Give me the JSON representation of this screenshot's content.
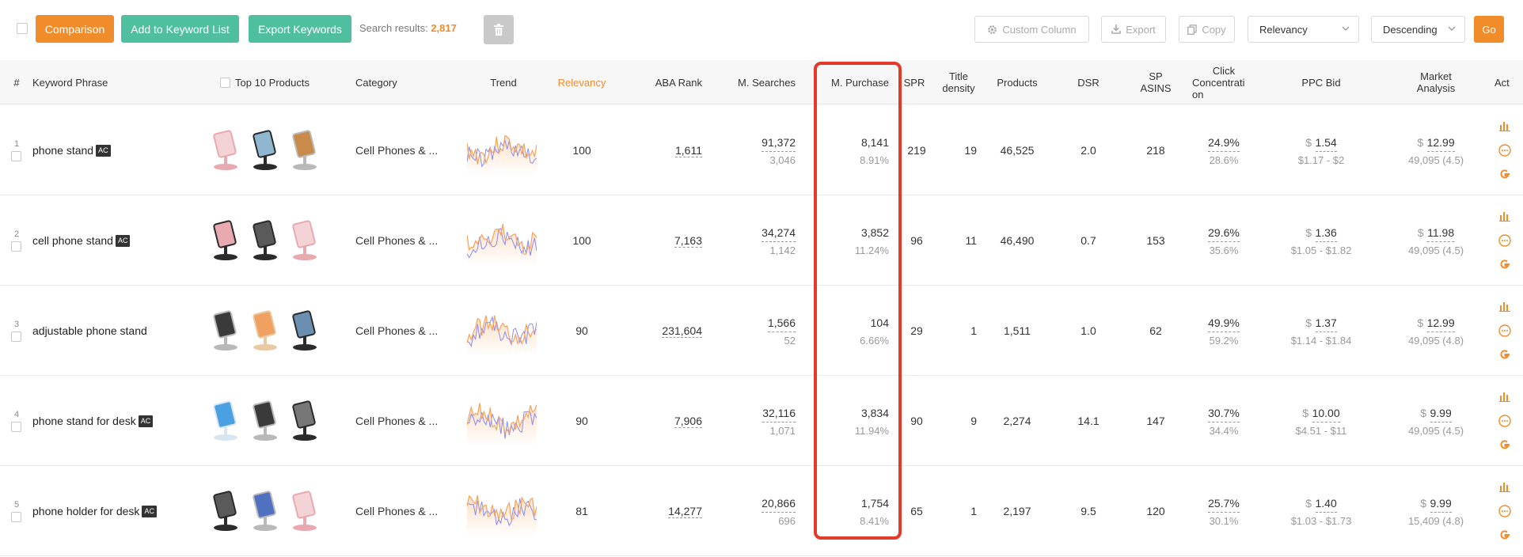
{
  "toolbar": {
    "comparison_label": "Comparison",
    "add_keyword_label": "Add to Keyword List",
    "export_keywords_label": "Export Keywords",
    "search_results_label": "Search results:",
    "search_results_count": "2,817",
    "custom_column_label": "Custom Column",
    "export_label": "Export",
    "copy_label": "Copy",
    "sort_field": "Relevancy",
    "sort_order": "Descending",
    "go_label": "Go"
  },
  "colors": {
    "accent": "#f08c2a",
    "teal": "#50bfa0",
    "highlight": "#e23b2a",
    "trend_orange": "#f5a35a",
    "trend_blue": "#8a8af0"
  },
  "columns": {
    "num": "#",
    "keyword": "Keyword Phrase",
    "top10": "Top 10 Products",
    "category": "Category",
    "trend": "Trend",
    "relevancy": "Relevancy",
    "aba": "ABA Rank",
    "msearches": "M. Searches",
    "mpurchase": "M. Purchase",
    "spr": "SPR",
    "title_density_1": "Title",
    "title_density_2": "density",
    "products": "Products",
    "dsr": "DSR",
    "sp_asins_1": "SP",
    "sp_asins_2": "ASINS",
    "click_1": "Click",
    "click_2": "Concentrati",
    "click_3": "on",
    "ppc": "PPC Bid",
    "market_1": "Market",
    "market_2": "Analysis",
    "action": "Act"
  },
  "rows": [
    {
      "num": "1",
      "keyword": "phone stand",
      "badge": "AC",
      "category": "Cell Phones & ...",
      "relevancy": "100",
      "aba_rank": "1,611",
      "msearches": "91,372",
      "msearches_sub": "3,046",
      "mpurchase": "8,141",
      "mpurchase_pct": "8.91%",
      "spr": "219",
      "title_density": "19",
      "products": "46,525",
      "dsr": "2.0",
      "sp_asins": "218",
      "click_top": "24.9%",
      "click_sub": "28.6%",
      "ppc_symbol": "$",
      "ppc": "1.54",
      "ppc_range": "$1.17 - $2",
      "market_symbol": "$",
      "market": "12.99",
      "market_sub": "49,095 (4.5)",
      "products_icons": [
        "stand-rose",
        "stand-black-tablet",
        "stand-silver-tablet"
      ]
    },
    {
      "num": "2",
      "keyword": "cell phone stand",
      "badge": "AC",
      "category": "Cell Phones & ...",
      "relevancy": "100",
      "aba_rank": "7,163",
      "msearches": "34,274",
      "msearches_sub": "1,142",
      "mpurchase": "3,852",
      "mpurchase_pct": "11.24%",
      "spr": "96",
      "title_density": "11",
      "products": "46,490",
      "dsr": "0.7",
      "sp_asins": "153",
      "click_top": "29.6%",
      "click_sub": "35.6%",
      "ppc_symbol": "$",
      "ppc": "1.36",
      "ppc_range": "$1.05 - $1.82",
      "market_symbol": "$",
      "market": "11.98",
      "market_sub": "49,095 (4.5)",
      "products_icons": [
        "stand-black-pink",
        "stand-black",
        "stand-rose"
      ]
    },
    {
      "num": "3",
      "keyword": "adjustable phone stand",
      "badge": "",
      "category": "Cell Phones & ...",
      "relevancy": "90",
      "aba_rank": "231,604",
      "msearches": "1,566",
      "msearches_sub": "52",
      "mpurchase": "104",
      "mpurchase_pct": "6.66%",
      "spr": "29",
      "title_density": "1",
      "products": "1,511",
      "dsr": "1.0",
      "sp_asins": "62",
      "click_top": "49.9%",
      "click_sub": "59.2%",
      "ppc_symbol": "$",
      "ppc": "1.37",
      "ppc_range": "$1.14 - $1.84",
      "market_symbol": "$",
      "market": "12.99",
      "market_sub": "49,095 (4.8)",
      "products_icons": [
        "stand-silver",
        "stand-gold",
        "stand-black-tall"
      ]
    },
    {
      "num": "4",
      "keyword": "phone stand for desk",
      "badge": "AC",
      "category": "Cell Phones & ...",
      "relevancy": "90",
      "aba_rank": "7,906",
      "msearches": "32,116",
      "msearches_sub": "1,071",
      "mpurchase": "3,834",
      "mpurchase_pct": "11.94%",
      "spr": "90",
      "title_density": "9",
      "products": "2,274",
      "dsr": "14.1",
      "sp_asins": "147",
      "click_top": "30.7%",
      "click_sub": "34.4%",
      "ppc_symbol": "$",
      "ppc": "10.00",
      "ppc_range": "$4.51 - $11",
      "market_symbol": "$",
      "market": "9.99",
      "market_sub": "49,095 (4.5)",
      "products_icons": [
        "stand-clear",
        "stand-silver",
        "stand-black-dual"
      ]
    },
    {
      "num": "5",
      "keyword": "phone holder for desk",
      "badge": "AC",
      "category": "Cell Phones & ...",
      "relevancy": "81",
      "aba_rank": "14,277",
      "msearches": "20,866",
      "msearches_sub": "696",
      "mpurchase": "1,754",
      "mpurchase_pct": "8.41%",
      "spr": "65",
      "title_density": "1",
      "products": "2,197",
      "dsr": "9.5",
      "sp_asins": "120",
      "click_top": "25.7%",
      "click_sub": "30.1%",
      "ppc_symbol": "$",
      "ppc": "1.40",
      "ppc_range": "$1.03 - $1.73",
      "market_symbol": "$",
      "market": "9.99",
      "market_sub": "15,409 (4.8)",
      "products_icons": [
        "stand-black",
        "stand-silver-blue",
        "stand-rose"
      ]
    }
  ]
}
